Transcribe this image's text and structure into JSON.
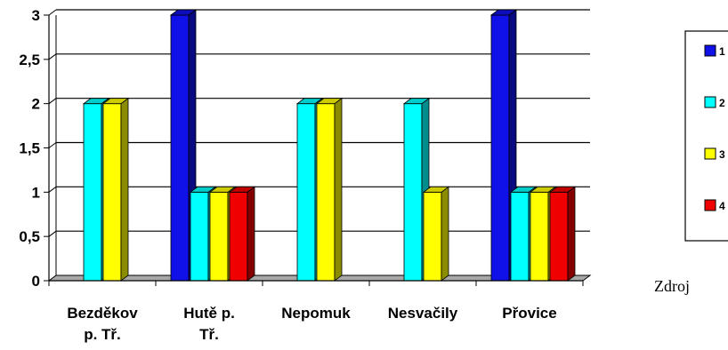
{
  "chart_data": {
    "type": "bar",
    "categories": [
      [
        "Bezděkov",
        "p. Tř."
      ],
      [
        "Hutě p.",
        "Tř."
      ],
      [
        "Nepomuk"
      ],
      [
        "Nesvačily"
      ],
      [
        "Přovice"
      ]
    ],
    "series": [
      {
        "name": "1",
        "color": "#1010E8",
        "values": [
          0,
          3,
          0,
          0,
          3
        ]
      },
      {
        "name": "2",
        "color": "#00FFFF",
        "values": [
          2,
          1,
          2,
          2,
          1
        ]
      },
      {
        "name": "3",
        "color": "#FFFF00",
        "values": [
          2,
          1,
          2,
          1,
          1
        ]
      },
      {
        "name": "4",
        "color": "#F00000",
        "values": [
          0,
          1,
          0,
          0,
          1
        ]
      }
    ],
    "yticks": [
      "0",
      "0,5",
      "1",
      "1,5",
      "2",
      "2,5",
      "3"
    ],
    "ylim": [
      0,
      3
    ],
    "grid": true,
    "legend_position": "right",
    "title": "",
    "xlabel": "",
    "ylabel": ""
  },
  "source_note": "Zdroj"
}
